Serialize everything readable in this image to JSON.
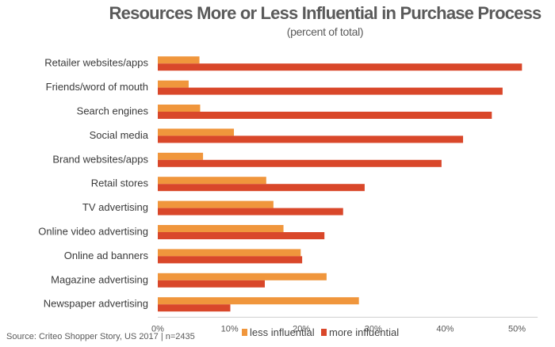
{
  "chart_data": {
    "type": "bar",
    "orientation": "horizontal",
    "title": "Resources More or Less Influential in Purchase Process",
    "subtitle": "(percent of total)",
    "xlabel": "",
    "ylabel": "",
    "xlim": [
      0,
      52
    ],
    "xticks": [
      0,
      10,
      20,
      30,
      40,
      50
    ],
    "xtick_labels": [
      "0%",
      "10%",
      "20%",
      "30%",
      "40%",
      "50%"
    ],
    "grid": false,
    "legend_position": "bottom",
    "categories": [
      "Retailer websites/apps",
      "Friends/word of mouth",
      "Search engines",
      "Social media",
      "Brand websites/apps",
      "Retail stores",
      "TV advertising",
      "Online video advertising",
      "Online ad banners",
      "Magazine advertising",
      "Newspaper advertising"
    ],
    "series": [
      {
        "name": "less influential",
        "color": "#f0963c",
        "values": [
          5.8,
          4.3,
          5.9,
          10.6,
          6.3,
          15.1,
          16.1,
          17.5,
          19.9,
          23.5,
          28.0
        ]
      },
      {
        "name": "more influential",
        "color": "#d9472a",
        "values": [
          50.7,
          48.0,
          46.5,
          42.5,
          39.5,
          28.8,
          25.8,
          23.2,
          20.1,
          14.9,
          10.1
        ]
      }
    ],
    "source": "Source: Criteo Shopper Story, US 2017 | n=2435"
  }
}
